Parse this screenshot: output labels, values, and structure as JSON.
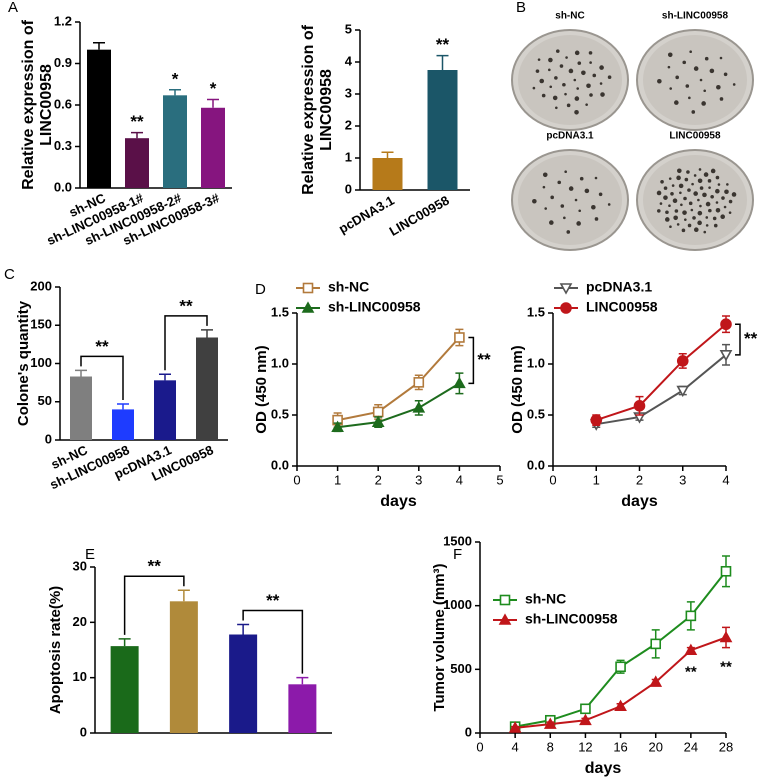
{
  "chart_data": [
    {
      "type": "bar",
      "panel": "A",
      "ylabel": "Relative expression of LINC00958",
      "categories": [
        "sh-NC",
        "sh-LINC00958-1#",
        "sh-LINC00958-2#",
        "sh-LINC00958-3#"
      ],
      "values": [
        1.0,
        0.36,
        0.67,
        0.58
      ],
      "errors": [
        0.05,
        0.04,
        0.04,
        0.06
      ],
      "colors": [
        "#000000",
        "#5a1048",
        "#2a6e7e",
        "#86157f"
      ],
      "significance": [
        null,
        "**",
        "*",
        "*"
      ],
      "ylim": [
        0,
        1.2
      ],
      "yticks": [
        {
          "value": 0,
          "label": "0.0"
        },
        0.3,
        0.6,
        0.9,
        1.2
      ]
    },
    {
      "type": "bar",
      "ylabel": "Relative expression of LINC00958",
      "categories": [
        "pcDNA3.1",
        "LINC00958"
      ],
      "values": [
        1.0,
        3.75
      ],
      "errors": [
        0.18,
        0.45
      ],
      "colors": [
        "#b67a1a",
        "#1b5668"
      ],
      "significance": [
        null,
        "**"
      ],
      "ylim": [
        0,
        5
      ],
      "yticks": [
        0,
        1,
        2,
        3,
        4,
        5
      ]
    },
    {
      "type": "image",
      "panel": "B",
      "labels": [
        "sh-NC",
        "sh-LINC00958",
        "pcDNA3.1",
        "LINC00958"
      ]
    },
    {
      "type": "bar",
      "panel": "C",
      "ylabel": "Colone's quantity",
      "categories": [
        "sh-NC",
        "sh-LINC00958",
        "pcDNA3.1",
        "LINC00958"
      ],
      "values": [
        83,
        40,
        78,
        134
      ],
      "errors": [
        8,
        7,
        8,
        10
      ],
      "colors": [
        "#7f7f7f",
        "#1e3cff",
        "#1a1a8c",
        "#404040"
      ],
      "significance": [
        "**",
        "**"
      ],
      "ylim": [
        0,
        200
      ],
      "yticks": [
        0,
        50,
        100,
        150,
        200
      ]
    },
    {
      "type": "line",
      "panel": "D",
      "ylabel": "OD (450 nm)",
      "xlabel": "days",
      "x": [
        1,
        2,
        3,
        4
      ],
      "series": [
        {
          "name": "sh-NC",
          "color": "#b27a3c",
          "marker": "square-open",
          "values": [
            0.45,
            0.53,
            0.82,
            1.26
          ],
          "errors": [
            0.07,
            0.07,
            0.07,
            0.08
          ]
        },
        {
          "name": "sh-LINC00958",
          "color": "#1d6b1d",
          "marker": "triangle",
          "values": [
            0.38,
            0.43,
            0.57,
            0.81
          ],
          "errors": [
            0.04,
            0.05,
            0.07,
            0.1
          ]
        }
      ],
      "significance": [
        "**"
      ],
      "xlim": [
        0,
        5
      ],
      "xticks": [
        0,
        1,
        2,
        3,
        4,
        5
      ],
      "ylim": [
        0,
        1.5
      ],
      "yticks": [
        {
          "value": 0,
          "label": "0.0"
        },
        0.5,
        {
          "value": 1,
          "label": "1.0"
        },
        1.5
      ]
    },
    {
      "type": "line",
      "ylabel": "OD (450 nm)",
      "xlabel": "days",
      "x": [
        1,
        2,
        3,
        4
      ],
      "series": [
        {
          "name": "pcDNA3.1",
          "color": "#555555",
          "marker": "tri-down-open",
          "values": [
            0.41,
            0.48,
            0.74,
            1.09
          ],
          "errors": [
            0.03,
            0.03,
            0.04,
            0.1
          ]
        },
        {
          "name": "LINC00958",
          "color": "#c0161a",
          "marker": "circle",
          "values": [
            0.45,
            0.59,
            1.03,
            1.39
          ],
          "errors": [
            0.05,
            0.09,
            0.07,
            0.08
          ]
        }
      ],
      "significance": [
        "**"
      ],
      "xlim": [
        0,
        4
      ],
      "xticks": [
        0,
        1,
        2,
        3,
        4
      ],
      "ylim": [
        0,
        1.5
      ],
      "yticks": [
        {
          "value": 0,
          "label": "0.0"
        },
        0.5,
        {
          "value": 1,
          "label": "1.0"
        },
        1.5
      ]
    },
    {
      "type": "bar",
      "panel": "E",
      "ylabel": "Apoptosis rate(%)",
      "categories": [
        null,
        null,
        null,
        null
      ],
      "values": [
        15.7,
        23.8,
        17.8,
        8.8
      ],
      "errors": [
        1.3,
        2.0,
        1.8,
        1.2
      ],
      "colors": [
        "#1a6a1a",
        "#b08a3a",
        "#1a1a8a",
        "#8c1aaa"
      ],
      "significance": [
        "**",
        "**"
      ],
      "ylim": [
        0,
        30
      ],
      "yticks": [
        0,
        10,
        20,
        30
      ]
    },
    {
      "type": "line",
      "panel": "F",
      "ylabel": "Tumor volume (mm³)",
      "xlabel": "days",
      "x": [
        4,
        8,
        12,
        16,
        20,
        24,
        28
      ],
      "series": [
        {
          "name": "sh-NC",
          "color": "#1e8c1e",
          "marker": "square-open",
          "values": [
            50,
            100,
            190,
            520,
            700,
            920,
            1270
          ],
          "errors": [
            20,
            25,
            30,
            50,
            110,
            110,
            120
          ]
        },
        {
          "name": "sh-LINC00958",
          "color": "#c0161a",
          "marker": "triangle",
          "values": [
            40,
            70,
            100,
            210,
            400,
            650,
            750
          ],
          "errors": [
            10,
            15,
            15,
            20,
            20,
            20,
            80
          ]
        }
      ],
      "significance": [
        "**",
        "**"
      ],
      "xlim": [
        0,
        28
      ],
      "xticks": [
        0,
        4,
        8,
        12,
        16,
        20,
        24,
        28
      ],
      "ylim": [
        0,
        1500
      ],
      "yticks": [
        0,
        500,
        1000,
        1500
      ]
    }
  ]
}
